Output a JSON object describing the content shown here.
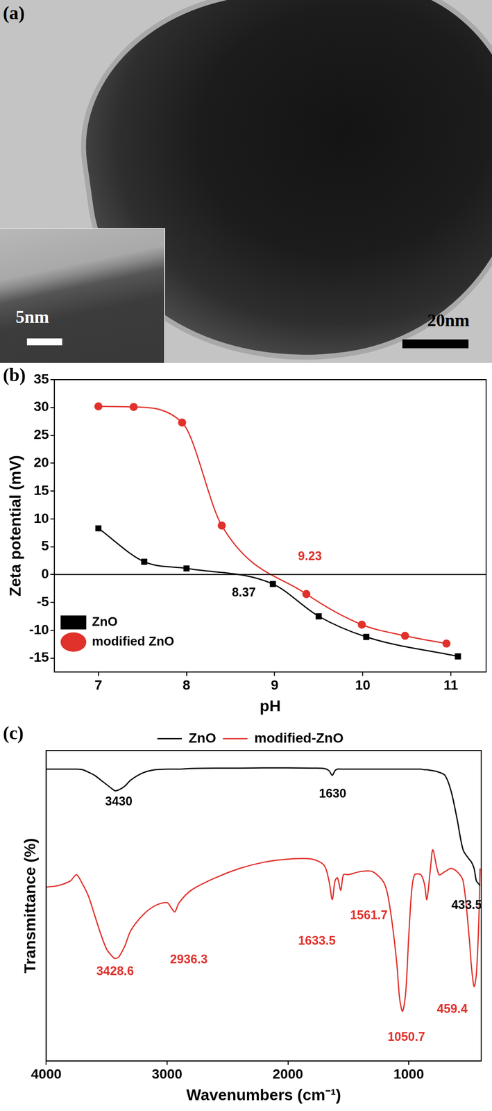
{
  "image": {
    "label": "(a)",
    "scale_bar": "20nm",
    "inset_scale_bar": "5nm"
  },
  "chart_data": [
    {
      "type": "line",
      "title": "(b)",
      "x_label": "pH",
      "y_label": "Zeta potential (mV)",
      "xlim": [
        6.5,
        11.4
      ],
      "xticks": [
        7,
        8,
        9,
        10,
        11
      ],
      "ylim": [
        -17.5,
        35
      ],
      "yticks": [
        -15,
        -10,
        -5,
        0,
        5,
        10,
        15,
        20,
        25,
        30,
        35
      ],
      "grid": false,
      "legend": "upper right",
      "hline": 0,
      "series": [
        {
          "name": "ZnO",
          "color": "#000000",
          "marker": "square",
          "line_style": "solid",
          "x": [
            7.0,
            7.52,
            8.0,
            8.98,
            9.5,
            10.04,
            11.08
          ],
          "values": [
            8.3,
            2.3,
            1.1,
            -1.7,
            -7.5,
            -11.2,
            -14.7
          ]
        },
        {
          "name": "modified ZnO",
          "color": "#e0312b",
          "marker": "circle",
          "line_style": "solid",
          "x": [
            7.0,
            7.4,
            7.95,
            8.4,
            9.36,
            9.99,
            10.48,
            10.95
          ],
          "values": [
            30.2,
            30.1,
            27.3,
            8.8,
            -3.5,
            -9.0,
            -11.0,
            -12.4
          ]
        }
      ],
      "annotations": [
        {
          "text": "8.37",
          "x": 8.65,
          "y": -3.3,
          "color": "#000000"
        },
        {
          "text": "9.23",
          "x": 9.4,
          "y": 3.2,
          "color": "#e0312b"
        }
      ]
    },
    {
      "type": "line",
      "title": "(c)",
      "x_label": "Wavenumbers (cm⁻¹)",
      "y_label": "Transmittance (%)",
      "xlim": [
        4000,
        400
      ],
      "xticks": [
        4000,
        3000,
        2000,
        1000
      ],
      "ylim": [
        0,
        100
      ],
      "yticks": [],
      "grid": false,
      "legend": "top",
      "tick_labels": "x",
      "x": [
        4000,
        3900,
        3800,
        3750,
        3700,
        3650,
        3600,
        3550,
        3500,
        3450,
        3430,
        3400,
        3350,
        3300,
        3200,
        3100,
        3000,
        2960,
        2936,
        2900,
        2800,
        2600,
        2400,
        2200,
        2000,
        1800,
        1700,
        1660,
        1633,
        1610,
        1590,
        1562,
        1540,
        1500,
        1400,
        1300,
        1200,
        1150,
        1100,
        1075,
        1051,
        1025,
        1000,
        975,
        950,
        900,
        870,
        850,
        820,
        800,
        750,
        700,
        650,
        600,
        550,
        500,
        480,
        459,
        440,
        420,
        410
      ],
      "series": [
        {
          "name": "ZnO",
          "color": "#000000",
          "marker": "none",
          "line_style": "solid",
          "values": [
            94,
            94,
            94,
            94,
            93.8,
            93,
            92,
            90.5,
            89,
            87.5,
            87,
            87.3,
            88.5,
            90.5,
            92.8,
            93.8,
            94,
            94,
            94,
            94,
            94.2,
            94.3,
            94.3,
            94.4,
            94.4,
            94.3,
            94.2,
            93.5,
            92,
            93.5,
            94,
            94,
            94,
            94,
            94,
            94,
            94,
            94,
            94,
            94,
            94,
            94,
            94,
            94,
            94,
            94,
            93.8,
            93.8,
            93.6,
            93.5,
            93,
            92,
            87,
            78,
            68,
            65,
            64,
            62,
            58,
            57,
            56.5
          ]
        },
        {
          "name": "modified-ZnO",
          "color": "#e0312b",
          "marker": "none",
          "line_style": "solid",
          "values": [
            56,
            56.5,
            58,
            60,
            57,
            53,
            47,
            41,
            36,
            33.5,
            33,
            33.5,
            37,
            42,
            47,
            50,
            51,
            49,
            48,
            51,
            55,
            59,
            62,
            64,
            65,
            65,
            63,
            58,
            52,
            58,
            59,
            55,
            60,
            60,
            61,
            61,
            57,
            48,
            32,
            20,
            16,
            22,
            40,
            55,
            60,
            60,
            57,
            52,
            62,
            68,
            60,
            61,
            62,
            61,
            58,
            40,
            30,
            24,
            28,
            45,
            62
          ]
        }
      ],
      "annotations": [
        {
          "text": "3430",
          "x": 3400,
          "y": 83.4,
          "color": "#000000"
        },
        {
          "text": "1630",
          "x": 1630,
          "y": 86,
          "color": "#000000"
        },
        {
          "text": "433.5",
          "x": 520,
          "y": 50,
          "color": "#000000"
        },
        {
          "text": "3428.6",
          "x": 3430,
          "y": 28.7,
          "color": "#e0312b"
        },
        {
          "text": "2936.3",
          "x": 2820,
          "y": 32.6,
          "color": "#e0312b"
        },
        {
          "text": "1633.5",
          "x": 1760,
          "y": 38.6,
          "color": "#e0312b"
        },
        {
          "text": "1561.7",
          "x": 1330,
          "y": 46.7,
          "color": "#e0312b"
        },
        {
          "text": "1050.7",
          "x": 1020,
          "y": 7.6,
          "color": "#e0312b"
        },
        {
          "text": "459.4",
          "x": 640,
          "y": 16.6,
          "color": "#e0312b"
        }
      ]
    }
  ]
}
